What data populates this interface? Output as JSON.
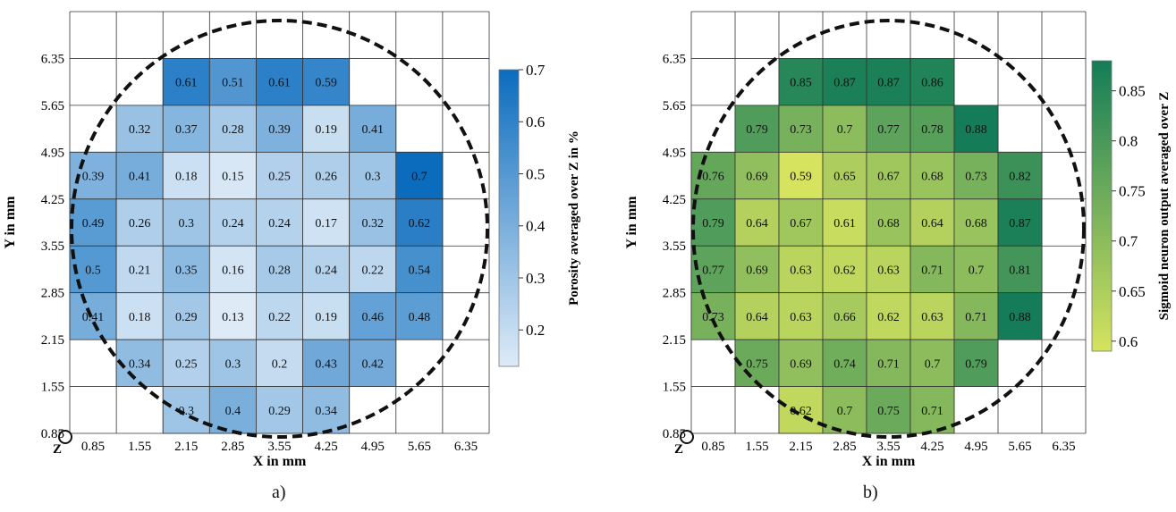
{
  "panels": [
    {
      "caption": "a)",
      "chart_data": {
        "type": "heatmap",
        "xlabel": "X in mm",
        "ylabel": "Y in mm",
        "origin_label": "Z",
        "x_ticks": [
          "0.85",
          "1.55",
          "2.15",
          "2.85",
          "3.55",
          "4.25",
          "4.95",
          "5.65",
          "6.35"
        ],
        "y_ticks": [
          "0.85",
          "1.55",
          "2.15",
          "2.85",
          "3.55",
          "4.25",
          "4.95",
          "5.65",
          "6.35"
        ],
        "colorbar": {
          "label": "Porosity averaged over Z in %",
          "min": 0.13,
          "max": 0.7,
          "ticks": [
            0.2,
            0.3,
            0.4,
            0.5,
            0.6,
            0.7
          ],
          "color_low": "#deebf7",
          "color_high": "#0b6cbe"
        },
        "rows": [
          [
            null,
            null,
            0.61,
            0.51,
            0.61,
            0.59,
            null,
            null,
            null
          ],
          [
            null,
            0.32,
            0.37,
            0.28,
            0.39,
            0.19,
            0.41,
            null,
            null
          ],
          [
            0.39,
            0.41,
            0.18,
            0.15,
            0.25,
            0.26,
            0.3,
            0.7,
            null
          ],
          [
            0.49,
            0.26,
            0.3,
            0.24,
            0.24,
            0.17,
            0.32,
            0.62,
            null
          ],
          [
            0.5,
            0.21,
            0.35,
            0.16,
            0.28,
            0.24,
            0.22,
            0.54,
            null
          ],
          [
            0.41,
            0.18,
            0.29,
            0.13,
            0.22,
            0.19,
            0.46,
            0.48,
            null
          ],
          [
            null,
            0.34,
            0.25,
            0.3,
            0.2,
            0.43,
            0.42,
            null,
            null
          ],
          [
            null,
            null,
            0.3,
            0.4,
            0.29,
            0.34,
            null,
            null,
            null
          ]
        ]
      }
    },
    {
      "caption": "b)",
      "chart_data": {
        "type": "heatmap",
        "xlabel": "X in mm",
        "ylabel": "Y in mm",
        "origin_label": "Z",
        "x_ticks": [
          "0.85",
          "1.55",
          "2.15",
          "2.85",
          "3.55",
          "4.25",
          "4.95",
          "5.65",
          "6.35"
        ],
        "y_ticks": [
          "0.85",
          "1.55",
          "2.15",
          "2.85",
          "3.55",
          "4.25",
          "4.95",
          "5.65",
          "6.35"
        ],
        "colorbar": {
          "label": "Sigmoid neuron output averaged over Z",
          "min": 0.59,
          "max": 0.88,
          "ticks": [
            0.6,
            0.65,
            0.7,
            0.75,
            0.8,
            0.85
          ],
          "color_low": "#d5e35f",
          "color_high": "#147c58"
        },
        "rows": [
          [
            null,
            null,
            0.85,
            0.87,
            0.87,
            0.86,
            null,
            null,
            null
          ],
          [
            null,
            0.79,
            0.73,
            0.7,
            0.77,
            0.78,
            0.88,
            null,
            null
          ],
          [
            0.76,
            0.69,
            0.59,
            0.65,
            0.67,
            0.68,
            0.73,
            0.82,
            null
          ],
          [
            0.79,
            0.64,
            0.67,
            0.61,
            0.68,
            0.64,
            0.68,
            0.87,
            null
          ],
          [
            0.77,
            0.69,
            0.63,
            0.62,
            0.63,
            0.71,
            0.7,
            0.81,
            null
          ],
          [
            0.73,
            0.64,
            0.63,
            0.66,
            0.62,
            0.63,
            0.71,
            0.88,
            null
          ],
          [
            null,
            0.75,
            0.69,
            0.74,
            0.71,
            0.7,
            0.79,
            null,
            null
          ],
          [
            null,
            null,
            0.62,
            0.7,
            0.75,
            0.71,
            null,
            null,
            null
          ]
        ]
      }
    }
  ]
}
